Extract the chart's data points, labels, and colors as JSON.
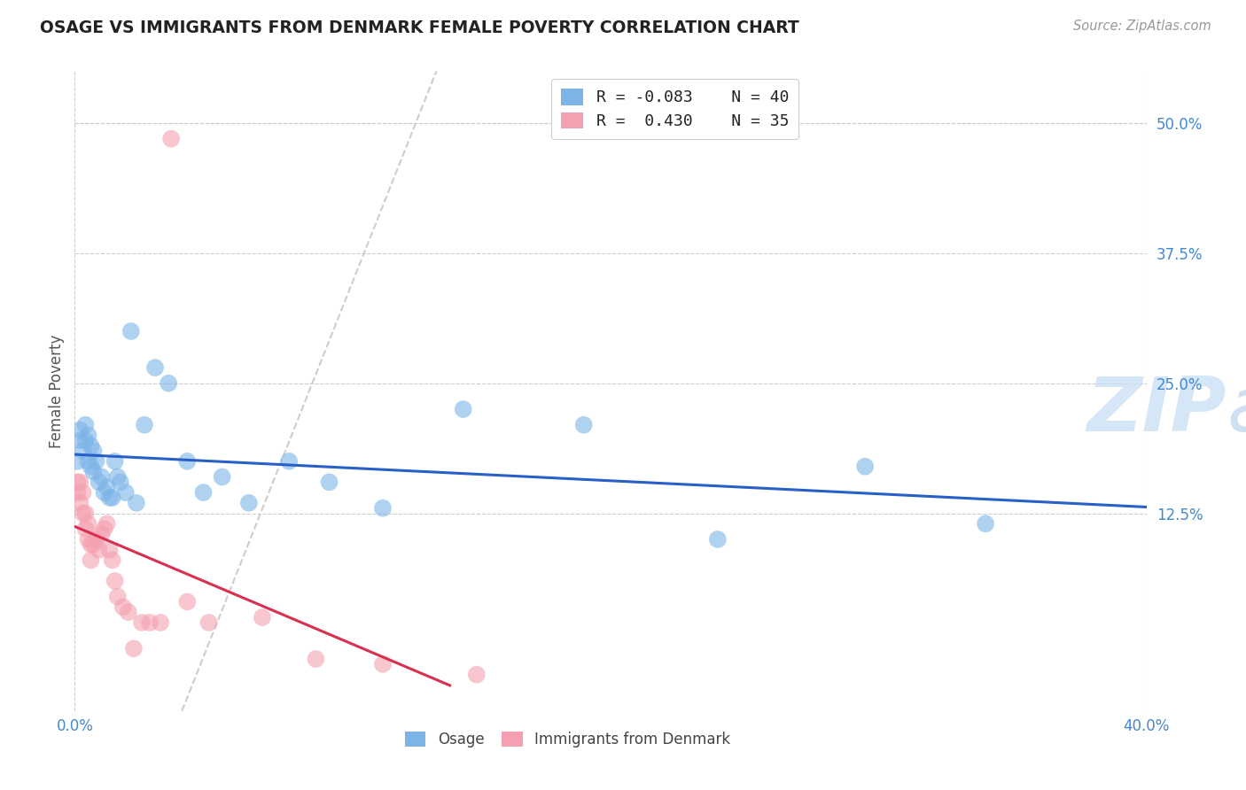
{
  "title": "OSAGE VS IMMIGRANTS FROM DENMARK FEMALE POVERTY CORRELATION CHART",
  "source": "Source: ZipAtlas.com",
  "ylabel": "Female Poverty",
  "xlim": [
    0.0,
    0.4
  ],
  "ylim": [
    -0.065,
    0.55
  ],
  "yticks_right": [
    0.125,
    0.25,
    0.375,
    0.5
  ],
  "ytick_labels_right": [
    "12.5%",
    "25.0%",
    "37.5%",
    "50.0%"
  ],
  "r_osage": -0.083,
  "n_osage": 40,
  "r_denmark": 0.43,
  "n_denmark": 35,
  "osage_color": "#7cb4e8",
  "denmark_color": "#f4a0b0",
  "trend_osage_color": "#2860c8",
  "trend_denmark_color": "#d83050",
  "osage_x": [
    0.001,
    0.002,
    0.002,
    0.003,
    0.004,
    0.004,
    0.005,
    0.005,
    0.006,
    0.006,
    0.007,
    0.007,
    0.008,
    0.009,
    0.01,
    0.011,
    0.012,
    0.013,
    0.014,
    0.015,
    0.016,
    0.017,
    0.019,
    0.021,
    0.023,
    0.026,
    0.03,
    0.035,
    0.042,
    0.048,
    0.055,
    0.065,
    0.08,
    0.095,
    0.115,
    0.145,
    0.19,
    0.24,
    0.295,
    0.34
  ],
  "osage_y": [
    0.175,
    0.195,
    0.205,
    0.185,
    0.21,
    0.195,
    0.2,
    0.175,
    0.17,
    0.19,
    0.185,
    0.165,
    0.175,
    0.155,
    0.16,
    0.145,
    0.15,
    0.14,
    0.14,
    0.175,
    0.16,
    0.155,
    0.145,
    0.3,
    0.135,
    0.21,
    0.265,
    0.25,
    0.175,
    0.145,
    0.16,
    0.135,
    0.175,
    0.155,
    0.13,
    0.225,
    0.21,
    0.1,
    0.17,
    0.115
  ],
  "denmark_x": [
    0.001,
    0.001,
    0.002,
    0.002,
    0.003,
    0.003,
    0.004,
    0.004,
    0.005,
    0.005,
    0.006,
    0.006,
    0.007,
    0.008,
    0.009,
    0.01,
    0.011,
    0.012,
    0.013,
    0.014,
    0.015,
    0.016,
    0.018,
    0.02,
    0.022,
    0.025,
    0.028,
    0.032,
    0.036,
    0.042,
    0.05,
    0.07,
    0.09,
    0.115,
    0.15
  ],
  "denmark_y": [
    0.145,
    0.155,
    0.135,
    0.155,
    0.125,
    0.145,
    0.11,
    0.125,
    0.1,
    0.115,
    0.08,
    0.095,
    0.095,
    0.1,
    0.09,
    0.105,
    0.11,
    0.115,
    0.09,
    0.08,
    0.06,
    0.045,
    0.035,
    0.03,
    -0.005,
    0.02,
    0.02,
    0.02,
    0.485,
    0.04,
    0.02,
    0.025,
    -0.015,
    -0.02,
    -0.03
  ],
  "watermark_zip": "ZIP",
  "watermark_atlas": "atlas",
  "background_color": "#ffffff",
  "grid_color": "#cccccc"
}
